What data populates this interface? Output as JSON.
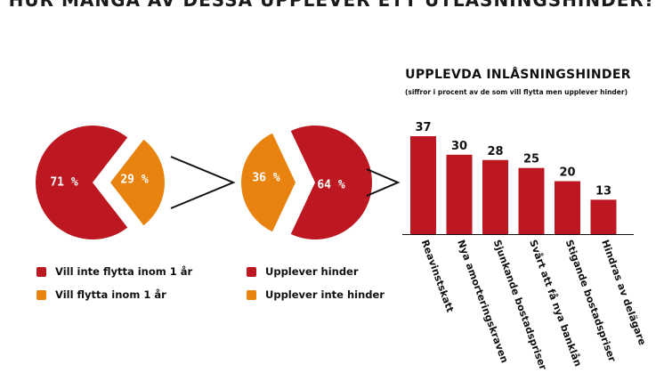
{
  "title": "HUR MÅNGA AV DESSA UPPLEVER ETT UTLÅSNINGSHINDER?",
  "colors": {
    "red": "#BD1821",
    "orange": "#E8830F",
    "dark": "#111111"
  },
  "chart_data": [
    {
      "type": "pie",
      "slices": [
        {
          "label": "Vill inte flytta inom 1 år",
          "value": 71,
          "display": "71 %"
        },
        {
          "label": "Vill flytta inom 1 år",
          "value": 29,
          "display": "29 %"
        }
      ],
      "legend_position": "bottom"
    },
    {
      "type": "pie",
      "slices": [
        {
          "label": "Upplever hinder",
          "value": 64,
          "display": "64 %"
        },
        {
          "label": "Upplever inte hinder",
          "value": 36,
          "display": "36 %"
        }
      ],
      "legend_position": "bottom"
    },
    {
      "type": "bar",
      "title": "UPPLEVDA INLÅSNINGSHINDER",
      "subtitle": "(siffror i procent av de som vill flytta men upplever hinder)",
      "categories": [
        "Reavinstskatt",
        "Nya amorteringskraven",
        "Sjunkande bostadspriser",
        "Svårt att få nya banklån",
        "Stigande bostadspriser",
        "Hindras av delägare"
      ],
      "values": [
        37,
        30,
        28,
        25,
        20,
        13
      ],
      "ylim": [
        0,
        40
      ],
      "grid": false
    }
  ],
  "legends": {
    "left": [
      {
        "label": "Vill inte flytta inom 1 år",
        "color": "#BD1821"
      },
      {
        "label": "Vill flytta inom 1 år",
        "color": "#E8830F"
      }
    ],
    "right": [
      {
        "label": "Upplever hinder",
        "color": "#BD1821"
      },
      {
        "label": "Upplever inte hinder",
        "color": "#E8830F"
      }
    ]
  }
}
